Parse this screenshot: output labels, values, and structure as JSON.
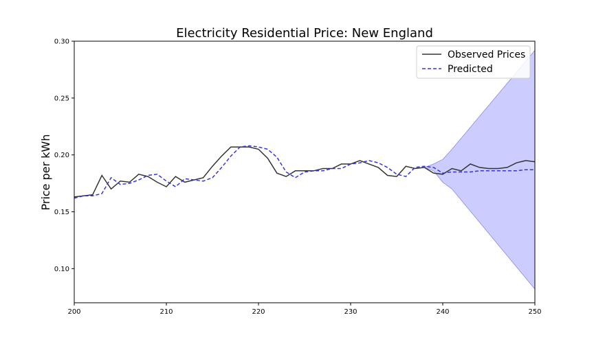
{
  "chart_data": {
    "type": "line",
    "title": "Electricity Residential Price: New England",
    "xlabel": "",
    "ylabel": "Price per kWh",
    "xlim": [
      200,
      250
    ],
    "ylim": [
      0.07,
      0.3
    ],
    "x_ticks": [
      200,
      210,
      220,
      230,
      240,
      250
    ],
    "x_tick_labels": [
      "200",
      "210",
      "220",
      "230",
      "240",
      "250"
    ],
    "y_ticks": [
      0.1,
      0.15,
      0.2,
      0.25,
      0.3
    ],
    "y_tick_labels": [
      "0.10",
      "0.15",
      "0.20",
      "0.25",
      "0.30"
    ],
    "grid": false,
    "legend_position": "top-right",
    "series": [
      {
        "name": "Observed Prices",
        "color": "#333333",
        "style": "solid",
        "x": [
          200,
          201,
          202,
          203,
          204,
          205,
          206,
          207,
          208,
          209,
          210,
          211,
          212,
          213,
          214,
          215,
          216,
          217,
          218,
          219,
          220,
          221,
          222,
          223,
          224,
          225,
          226,
          227,
          228,
          229,
          230,
          231,
          232,
          233,
          234,
          235,
          236,
          237,
          238,
          239,
          240,
          241,
          242,
          243,
          244,
          245,
          246,
          247,
          248,
          249,
          250
        ],
        "y": [
          0.163,
          0.164,
          0.165,
          0.182,
          0.17,
          0.177,
          0.176,
          0.183,
          0.181,
          0.176,
          0.172,
          0.181,
          0.176,
          0.178,
          0.18,
          0.19,
          0.199,
          0.207,
          0.207,
          0.207,
          0.205,
          0.197,
          0.184,
          0.181,
          0.186,
          0.186,
          0.186,
          0.188,
          0.188,
          0.192,
          0.192,
          0.195,
          0.192,
          0.189,
          0.182,
          0.181,
          0.19,
          0.188,
          0.189,
          0.184,
          0.183,
          0.188,
          0.186,
          0.192,
          0.189,
          0.188,
          0.188,
          0.189,
          0.193,
          0.195,
          0.194
        ]
      },
      {
        "name": "Predicted",
        "color": "#3333dd",
        "style": "dashed",
        "x": [
          200,
          201,
          202,
          203,
          204,
          205,
          206,
          207,
          208,
          209,
          210,
          211,
          212,
          213,
          214,
          215,
          216,
          217,
          218,
          219,
          220,
          221,
          222,
          223,
          224,
          225,
          226,
          227,
          228,
          229,
          230,
          231,
          232,
          233,
          234,
          235,
          236,
          237,
          238,
          239,
          240,
          241,
          242,
          243,
          244,
          245,
          246,
          247,
          248,
          249,
          250
        ],
        "y": [
          0.162,
          0.164,
          0.164,
          0.166,
          0.18,
          0.174,
          0.175,
          0.178,
          0.182,
          0.183,
          0.177,
          0.172,
          0.179,
          0.178,
          0.177,
          0.18,
          0.189,
          0.199,
          0.207,
          0.208,
          0.207,
          0.205,
          0.198,
          0.185,
          0.18,
          0.185,
          0.186,
          0.186,
          0.188,
          0.188,
          0.192,
          0.193,
          0.195,
          0.193,
          0.189,
          0.183,
          0.181,
          0.189,
          0.19,
          0.189,
          0.184,
          0.185,
          0.185,
          0.185,
          0.186,
          0.186,
          0.186,
          0.186,
          0.186,
          0.187,
          0.187
        ]
      }
    ],
    "confidence_band": {
      "color": "#aaaaff",
      "x": [
        238,
        239,
        240,
        241,
        250
      ],
      "lower": [
        0.189,
        0.186,
        0.176,
        0.17,
        0.082
      ],
      "upper": [
        0.189,
        0.192,
        0.196,
        0.205,
        0.292
      ]
    }
  }
}
